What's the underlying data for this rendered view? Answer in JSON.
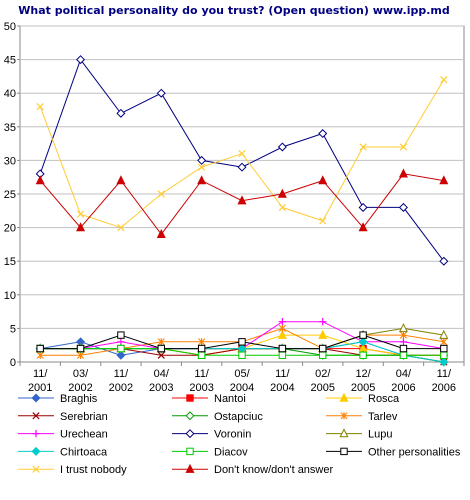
{
  "chart_data": {
    "type": "line",
    "title": "What political personality do you trust? (Open question) www.ipp.md",
    "xlabel": "",
    "ylabel": "",
    "ylim": [
      0,
      50
    ],
    "yticks": [
      0,
      5,
      10,
      15,
      20,
      25,
      30,
      35,
      40,
      45,
      50
    ],
    "grid": true,
    "legend_position": "bottom",
    "categories": [
      [
        "11/",
        "2001"
      ],
      [
        "03/",
        "2002"
      ],
      [
        "11/",
        "2002"
      ],
      [
        "04/",
        "2003"
      ],
      [
        "11/",
        "2003"
      ],
      [
        "05/",
        "2004"
      ],
      [
        "11/",
        "2004"
      ],
      [
        "02/",
        "2005"
      ],
      [
        "12/",
        "2005"
      ],
      [
        "04/",
        "2006"
      ],
      [
        "11/",
        "2006"
      ]
    ],
    "series": [
      {
        "name": "Braghis",
        "color": "#3366CC",
        "marker": "diamond-filled",
        "values": [
          2,
          3,
          1,
          2,
          2,
          2,
          2,
          2,
          3,
          1,
          1
        ]
      },
      {
        "name": "Nantoi",
        "color": "#FF0000",
        "marker": "square-filled",
        "values": [
          2,
          2,
          2,
          2,
          1,
          2,
          2,
          2,
          2,
          1,
          1
        ]
      },
      {
        "name": "Rosca",
        "color": "#FFCC00",
        "marker": "triangle-filled",
        "values": [
          2,
          2,
          2,
          2,
          1,
          2,
          4,
          4,
          2,
          1,
          1
        ]
      },
      {
        "name": "Serebrian",
        "color": "#990000",
        "marker": "x",
        "values": [
          2,
          2,
          2,
          1,
          1,
          2,
          2,
          2,
          1,
          1,
          0
        ]
      },
      {
        "name": "Ostapciuc",
        "color": "#009900",
        "marker": "diamond-open",
        "values": [
          2,
          2,
          2,
          2,
          2,
          2,
          2,
          1,
          1,
          1,
          0
        ]
      },
      {
        "name": "Tarlev",
        "color": "#FF8000",
        "marker": "star",
        "values": [
          1,
          1,
          2,
          3,
          3,
          3,
          5,
          2,
          4,
          4,
          3
        ]
      },
      {
        "name": "Urechean",
        "color": "#FF00FF",
        "marker": "plus",
        "values": [
          2,
          2,
          3,
          2,
          2,
          2,
          6,
          6,
          3,
          3,
          2
        ]
      },
      {
        "name": "Voronin",
        "color": "#000080",
        "marker": "diamond-open",
        "values": [
          28,
          45,
          37,
          40,
          30,
          29,
          32,
          34,
          23,
          23,
          15
        ]
      },
      {
        "name": "Lupu",
        "color": "#808000",
        "marker": "triangle-open",
        "values": [
          2,
          2,
          2,
          2,
          2,
          2,
          2,
          2,
          4,
          5,
          4
        ]
      },
      {
        "name": "Chirtoaca",
        "color": "#00CCCC",
        "marker": "diamond-filled",
        "values": [
          2,
          2,
          2,
          2,
          2,
          2,
          2,
          2,
          3,
          1,
          0
        ]
      },
      {
        "name": "Diacov",
        "color": "#00CC00",
        "marker": "square-open",
        "values": [
          2,
          2,
          2,
          2,
          1,
          1,
          1,
          1,
          1,
          1,
          1
        ]
      },
      {
        "name": "Other personalities",
        "color": "#000000",
        "marker": "square-open",
        "values": [
          2,
          2,
          4,
          2,
          2,
          3,
          2,
          2,
          4,
          2,
          2
        ]
      },
      {
        "name": "I trust nobody",
        "color": "#FFCC33",
        "marker": "x",
        "values": [
          38,
          22,
          20,
          25,
          29,
          31,
          23,
          21,
          32,
          32,
          42
        ]
      },
      {
        "name": "Don't know/don't answer",
        "color": "#CC0000",
        "marker": "triangle-filled",
        "values": [
          27,
          20,
          27,
          19,
          27,
          24,
          25,
          27,
          20,
          28,
          27
        ]
      }
    ]
  }
}
